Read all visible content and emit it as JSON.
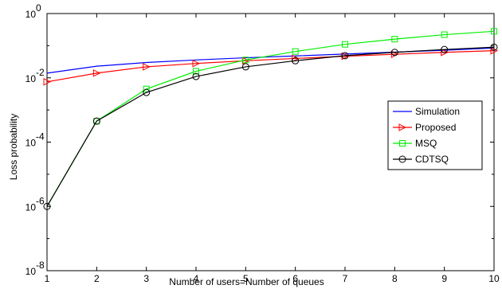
{
  "chart_data": {
    "type": "line",
    "xlabel": "Number of users=Number of queues",
    "ylabel": "Loss probability",
    "x": [
      1,
      2,
      3,
      4,
      5,
      6,
      7,
      8,
      9,
      10
    ],
    "xlim": [
      1,
      10
    ],
    "ylim": [
      1e-08,
      1
    ],
    "yscale": "log",
    "x_ticks": [
      "1",
      "2",
      "3",
      "4",
      "5",
      "6",
      "7",
      "8",
      "9",
      "10"
    ],
    "y_ticks": [
      {
        "value": 1,
        "base": "10",
        "exp": "0"
      },
      {
        "value": 0.01,
        "base": "10",
        "exp": "-2"
      },
      {
        "value": 0.0001,
        "base": "10",
        "exp": "-4"
      },
      {
        "value": 1e-06,
        "base": "10",
        "exp": "-6"
      },
      {
        "value": 1e-08,
        "base": "10",
        "exp": "-8"
      }
    ],
    "grid": false,
    "legend_position": "right",
    "series": [
      {
        "name": "Simulation",
        "color": "#0000ff",
        "marker": "none",
        "values": [
          0.014,
          0.023,
          0.03,
          0.036,
          0.042,
          0.048,
          0.055,
          0.063,
          0.072,
          0.085
        ]
      },
      {
        "name": "Proposed",
        "color": "#ff0000",
        "marker": "triangle-right",
        "values": [
          0.0075,
          0.014,
          0.022,
          0.028,
          0.034,
          0.04,
          0.047,
          0.054,
          0.062,
          0.07
        ]
      },
      {
        "name": "MSQ",
        "color": "#00ee00",
        "marker": "square",
        "values": [
          1e-06,
          0.00045,
          0.0045,
          0.016,
          0.036,
          0.066,
          0.11,
          0.16,
          0.22,
          0.28
        ]
      },
      {
        "name": "CDTSQ",
        "color": "#000000",
        "marker": "circle",
        "values": [
          1e-06,
          0.00045,
          0.0035,
          0.011,
          0.022,
          0.034,
          0.049,
          0.062,
          0.076,
          0.09
        ]
      }
    ]
  }
}
